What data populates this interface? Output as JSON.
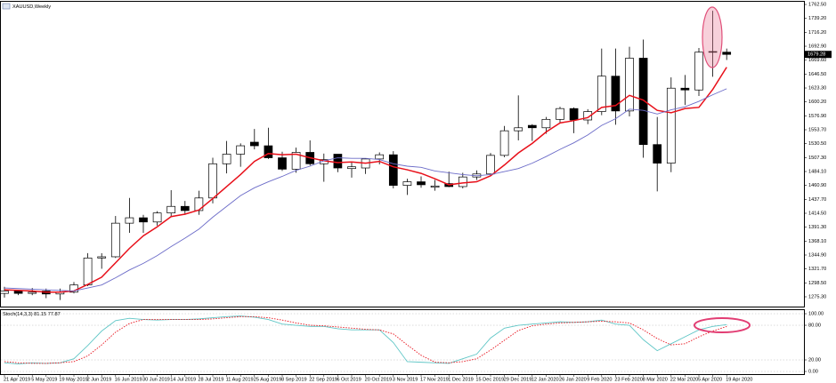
{
  "chart_data": [
    {
      "type": "candlestick",
      "title": "XAUUSD,Weekly",
      "open": [
        1281,
        1285,
        1281,
        1285,
        1280,
        1283,
        1295,
        1340,
        1342,
        1398,
        1407,
        1400,
        1415,
        1426,
        1419,
        1440,
        1497,
        1513,
        1533,
        1527,
        1507,
        1488,
        1516,
        1497,
        1513,
        1489,
        1490,
        1505,
        1512,
        1461,
        1467,
        1458,
        1464,
        1459,
        1475,
        1480,
        1511,
        1552,
        1561,
        1557,
        1571,
        1589,
        1570,
        1584,
        1643,
        1585,
        1673,
        1529,
        1498,
        1623,
        1620,
        1684,
        1683
      ],
      "high": [
        1292,
        1287,
        1290,
        1289,
        1289,
        1300,
        1348,
        1348,
        1410,
        1440,
        1412,
        1418,
        1453,
        1435,
        1452,
        1507,
        1535,
        1531,
        1555,
        1557,
        1517,
        1524,
        1536,
        1514,
        1513,
        1499,
        1506,
        1516,
        1518,
        1472,
        1476,
        1470,
        1484,
        1482,
        1486,
        1515,
        1560,
        1611,
        1563,
        1575,
        1592,
        1591,
        1588,
        1689,
        1689,
        1692,
        1704,
        1575,
        1641,
        1645,
        1690,
        1752,
        1689
      ],
      "low": [
        1274,
        1278,
        1278,
        1273,
        1270,
        1281,
        1293,
        1322,
        1340,
        1382,
        1382,
        1394,
        1408,
        1412,
        1412,
        1431,
        1481,
        1492,
        1521,
        1505,
        1485,
        1482,
        1494,
        1467,
        1483,
        1474,
        1480,
        1496,
        1456,
        1445,
        1457,
        1452,
        1458,
        1456,
        1470,
        1477,
        1508,
        1536,
        1535,
        1547,
        1565,
        1548,
        1563,
        1578,
        1562,
        1576,
        1507,
        1451,
        1483,
        1595,
        1610,
        1642,
        1670
      ],
      "close": [
        1285,
        1281,
        1283,
        1280,
        1283,
        1295,
        1340,
        1342,
        1398,
        1407,
        1400,
        1415,
        1426,
        1419,
        1440,
        1497,
        1513,
        1527,
        1527,
        1507,
        1488,
        1516,
        1497,
        1504,
        1490,
        1492,
        1505,
        1512,
        1461,
        1467,
        1462,
        1460,
        1459,
        1475,
        1480,
        1511,
        1552,
        1557,
        1557,
        1571,
        1589,
        1570,
        1584,
        1643,
        1585,
        1673,
        1529,
        1498,
        1623,
        1620,
        1683,
        1683,
        1679.28
      ],
      "up_color": "#ffffff",
      "down_color": "#000000",
      "series": [
        {
          "color": "#e8101a",
          "values": [
            1287,
            1286,
            1285,
            1283,
            1283,
            1285,
            1296,
            1308,
            1332,
            1356,
            1377,
            1392,
            1409,
            1413,
            1420,
            1439,
            1459,
            1479,
            1501,
            1514,
            1512,
            1513,
            1507,
            1502,
            1499,
            1500,
            1498,
            1501,
            1492,
            1487,
            1481,
            1472,
            1462,
            1465,
            1467,
            1477,
            1495,
            1515,
            1531,
            1550,
            1565,
            1569,
            1574,
            1591,
            1594,
            1611,
            1603,
            1586,
            1582,
            1589,
            1591,
            1621,
            1658
          ]
        },
        {
          "color": "#6b6bc8",
          "values": [
            1290,
            1289,
            1288,
            1287,
            1286,
            1285,
            1290,
            1295,
            1307,
            1320,
            1331,
            1344,
            1359,
            1373,
            1388,
            1408,
            1426,
            1444,
            1457,
            1467,
            1476,
            1486,
            1493,
            1502,
            1507,
            1506,
            1506,
            1504,
            1497,
            1493,
            1491,
            1485,
            1482,
            1479,
            1477,
            1479,
            1484,
            1489,
            1498,
            1509,
            1521,
            1532,
            1545,
            1561,
            1572,
            1588,
            1586,
            1580,
            1587,
            1592,
            1601,
            1612,
            1622
          ]
        }
      ],
      "ylim": [
        1259,
        1765.5
      ],
      "yticks": [
        {
          "value": 1762.5,
          "label": "1762.50"
        },
        {
          "value": 1739.2,
          "label": "1739.20"
        },
        {
          "value": 1716.2,
          "label": "1716.20"
        },
        {
          "value": 1692.9,
          "label": "1692.90"
        },
        {
          "value": 1669.6,
          "label": "1669.60"
        },
        {
          "value": 1646.5,
          "label": "1646.50"
        },
        {
          "value": 1623.3,
          "label": "1623.30"
        },
        {
          "value": 1600.2,
          "label": "1600.20"
        },
        {
          "value": 1576.9,
          "label": "1576.90"
        },
        {
          "value": 1553.7,
          "label": "1553.70"
        },
        {
          "value": 1530.5,
          "label": "1530.50"
        },
        {
          "value": 1507.3,
          "label": "1507.30"
        },
        {
          "value": 1484.1,
          "label": "1484.10"
        },
        {
          "value": 1460.9,
          "label": "1460.90"
        },
        {
          "value": 1437.7,
          "label": "1437.70"
        },
        {
          "value": 1414.5,
          "label": "1414.50"
        },
        {
          "value": 1391.3,
          "label": "1391.30"
        },
        {
          "value": 1368.1,
          "label": "1368.10"
        },
        {
          "value": 1344.9,
          "label": "1344.90"
        },
        {
          "value": 1321.7,
          "label": "1321.70"
        },
        {
          "value": 1298.5,
          "label": "1298.50"
        },
        {
          "value": 1275.3,
          "label": "1275.30"
        }
      ]
    },
    {
      "type": "line",
      "title": "Stoch(14,3,3)",
      "categories": [
        "21 Apr 2019",
        null,
        "5 May 2019",
        null,
        "19 May 2019",
        null,
        "2 Jun 2019",
        null,
        "16 Jun 2019",
        null,
        "30 Jun 2019",
        null,
        "14 Jul 2019",
        null,
        "28 Jul 2019",
        null,
        "11 Aug 2019",
        null,
        "25 Aug 2019",
        null,
        "8 Sep 2019",
        null,
        "22 Sep 2019",
        null,
        "6 Oct 2019",
        null,
        "20 Oct 2019",
        null,
        "3 Nov 2019",
        null,
        "17 Nov 2019",
        null,
        "1 Dec 2019",
        null,
        "15 Dec 2019",
        null,
        "29 Dec 2019",
        null,
        "12 Jan 2020",
        null,
        "26 Jan 2020",
        null,
        "9 Feb 2020",
        null,
        "23 Feb 2020",
        null,
        "8 Mar 2020",
        null,
        "22 Mar 2020",
        null,
        "5 Apr 2020",
        null,
        "19 Apr 2020"
      ],
      "series": [
        {
          "color": "#5fc6c6",
          "values": [
            15,
            13,
            15,
            14,
            15,
            22,
            45,
            70,
            88,
            92,
            90,
            89,
            90,
            90,
            91,
            93,
            95,
            96,
            94,
            90,
            82,
            80,
            78,
            78,
            74,
            72,
            72,
            72,
            50,
            17,
            16,
            15,
            14,
            22,
            30,
            58,
            75,
            80,
            82,
            84,
            86,
            85,
            86,
            89,
            82,
            80,
            55,
            36,
            48,
            60,
            72,
            78,
            81.15
          ]
        },
        {
          "color": "#e8101a",
          "dashed": true,
          "values": [
            17,
            15,
            14,
            14,
            15,
            17,
            27,
            46,
            68,
            83,
            90,
            90,
            90,
            90,
            90,
            91,
            93,
            95,
            95,
            93,
            89,
            84,
            80,
            79,
            77,
            75,
            73,
            72,
            65,
            46,
            28,
            16,
            15,
            17,
            22,
            37,
            54,
            71,
            79,
            82,
            84,
            85,
            86,
            87,
            86,
            84,
            72,
            57,
            46,
            48,
            60,
            70,
            77.87
          ]
        }
      ],
      "ylim": [
        -4.6,
        106.2
      ],
      "yticks": [
        {
          "value": 100,
          "label": "100.00"
        },
        {
          "value": 80,
          "label": "80.00"
        },
        {
          "value": 20,
          "label": "20.00"
        },
        {
          "value": 0,
          "label": "0.00"
        }
      ]
    }
  ]
}
